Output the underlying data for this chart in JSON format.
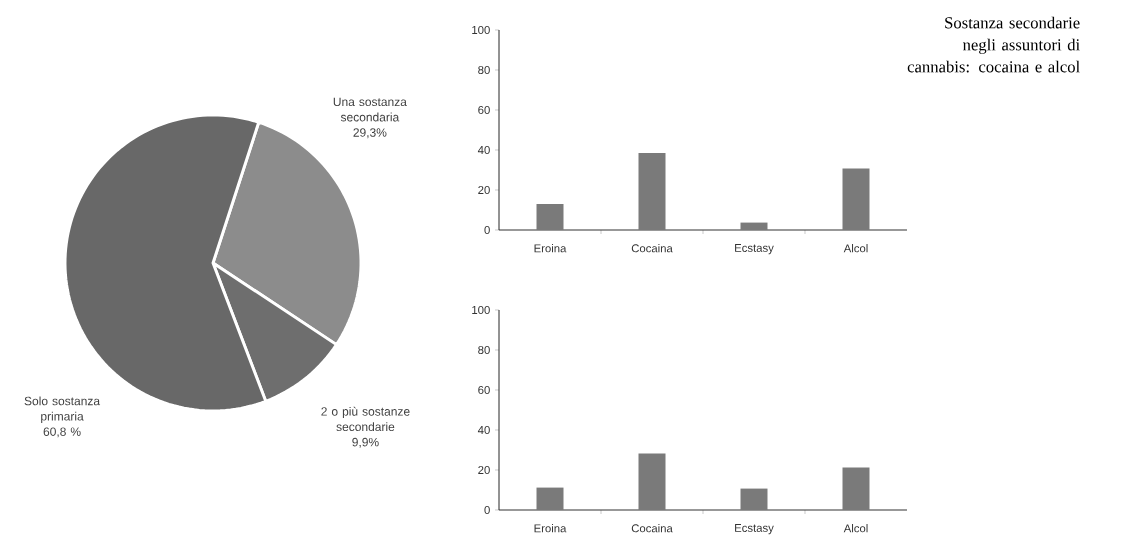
{
  "chart_data": [
    {
      "type": "pie",
      "categories": [
        "Una sostanza secondaria",
        "2 o più sostanze secondarie",
        "Solo sostanza primaria"
      ],
      "values": [
        29.3,
        9.9,
        60.8
      ],
      "colors": [
        "#8c8c8c",
        "#6e6e6e",
        "#686868"
      ],
      "value_labels": [
        "29,3%",
        "9,9%",
        "60,8 %"
      ]
    },
    {
      "type": "bar",
      "title": "Sostanza secondarie negli assuntori di cannabis: cocaina e alcol",
      "categories": [
        "Eroina",
        "Cocaina",
        "Ecstasy",
        "Alcol"
      ],
      "values": [
        13,
        38.5,
        3.7,
        30.7
      ],
      "color": "#7a7a7a",
      "ylim": [
        0,
        100
      ],
      "yticks": [
        0,
        20,
        40,
        60,
        80,
        100
      ]
    },
    {
      "type": "bar",
      "categories": [
        "Eroina",
        "Cocaina",
        "Ecstasy",
        "Alcol"
      ],
      "values": [
        11.2,
        28.2,
        10.7,
        21.2
      ],
      "color": "#7a7a7a",
      "ylim": [
        0,
        100
      ],
      "yticks": [
        0,
        20,
        40,
        60,
        80,
        100
      ]
    }
  ]
}
